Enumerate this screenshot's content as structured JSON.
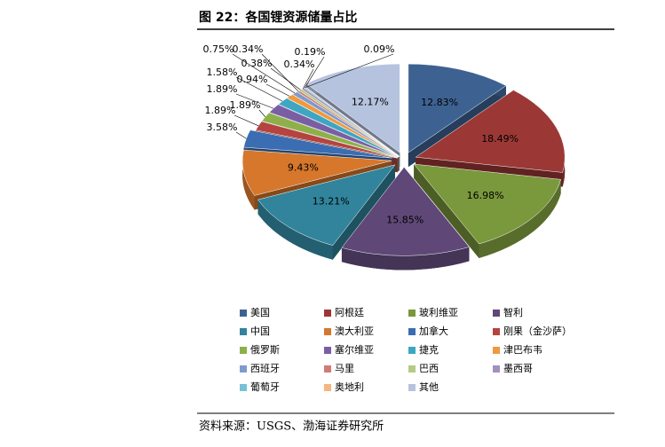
{
  "chart_data": {
    "type": "pie",
    "title": "图 22：各国锂资源储量占比",
    "source": "资料来源：USGS、渤海证券研究所",
    "categories": [
      "美国",
      "阿根廷",
      "玻利维亚",
      "智利",
      "中国",
      "澳大利亚",
      "加拿大",
      "刚果（金沙萨）",
      "俄罗斯",
      "塞尔维亚",
      "捷克",
      "津巴布韦",
      "西班牙",
      "马里",
      "巴西",
      "墨西哥",
      "葡萄牙",
      "奥地利",
      "其他"
    ],
    "values": [
      12.83,
      18.49,
      16.98,
      15.85,
      13.21,
      9.43,
      3.58,
      1.89,
      1.89,
      1.89,
      1.58,
      0.94,
      0.75,
      0.34,
      0.38,
      0.34,
      0.19,
      0.09,
      12.17
    ],
    "value_labels": [
      "12.83%",
      "18.49%",
      "16.98%",
      "15.85%",
      "13.21%",
      "9.43%",
      "3.58%",
      "1.89%",
      "1.89%",
      "1.89%",
      "1.58%",
      "0.94%",
      "0.75%",
      "0.34%",
      "0.38%",
      "0.34%",
      "0.19%",
      "0.09%",
      "12.17%"
    ],
    "colors": [
      "#3d6292",
      "#9b3835",
      "#7a983c",
      "#5f4878",
      "#31849b",
      "#d6772c",
      "#3a6db2",
      "#b5433f",
      "#8db04a",
      "#7a5ea5",
      "#3da6c2",
      "#f0993d",
      "#7d9bcb",
      "#cf7b78",
      "#b3cb84",
      "#a290bf",
      "#78c1d5",
      "#f6b77f",
      "#b6c3df"
    ]
  }
}
